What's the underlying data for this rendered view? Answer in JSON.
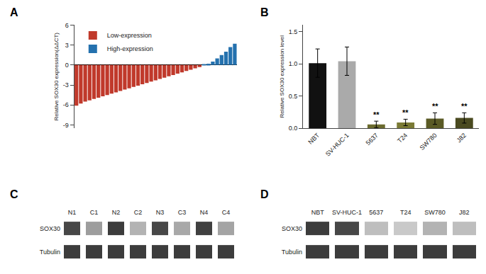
{
  "chart_data": [
    {
      "type": "bar",
      "title": "A",
      "categories": [
        null,
        null,
        null,
        null,
        null,
        null,
        null,
        null,
        null,
        null,
        null,
        null,
        null,
        null,
        null,
        null,
        null,
        null,
        null,
        null,
        null,
        null,
        null,
        null,
        null,
        null,
        null,
        null,
        null,
        null,
        null,
        null,
        null,
        null,
        null,
        null,
        null
      ],
      "series": [
        {
          "name": "Low-expression",
          "color": "#C0392B",
          "values": [
            -6.1,
            -5.8,
            -5.5,
            -5.3,
            -5.1,
            -4.9,
            -4.7,
            -4.5,
            -4.3,
            -4.1,
            -3.9,
            -3.7,
            -3.5,
            -3.3,
            -3.1,
            -2.9,
            -2.7,
            -2.5,
            -2.3,
            -2.1,
            -1.9,
            -1.7,
            -1.5,
            -1.3,
            -1.1,
            -0.9,
            -0.7,
            -0.5,
            -0.3,
            null,
            null,
            null,
            null,
            null,
            null,
            null,
            null
          ]
        },
        {
          "name": "High-expression",
          "color": "#2471AE",
          "values": [
            null,
            null,
            null,
            null,
            null,
            null,
            null,
            null,
            null,
            null,
            null,
            null,
            null,
            null,
            null,
            null,
            null,
            null,
            null,
            null,
            null,
            null,
            null,
            null,
            null,
            null,
            null,
            null,
            null,
            0.05,
            0.2,
            0.5,
            1.0,
            1.5,
            2.0,
            2.7,
            3.2
          ]
        }
      ],
      "ylabel": "Relative SOX30 expression(ΔΔCT)",
      "ylim": [
        -9.5,
        6
      ],
      "yticks": [
        -9,
        -6,
        -3,
        0,
        3,
        6
      ],
      "grid": false,
      "legend": "upper left",
      "tick_labels": "y"
    },
    {
      "type": "bar",
      "title": "B",
      "categories": [
        "NBT",
        "SV-HUC-1",
        "5637",
        "T24",
        "SW780",
        "J82"
      ],
      "values": [
        1.01,
        1.04,
        0.06,
        0.09,
        0.15,
        0.16
      ],
      "errors": [
        0.22,
        0.22,
        0.05,
        0.05,
        0.09,
        0.08
      ],
      "colors": [
        "#111111",
        "#aaaaaa",
        "#6b6b2e",
        "#7a7a35",
        "#5a5a25",
        "#4a4a20"
      ],
      "annotations": [
        null,
        null,
        "**",
        "**",
        "**",
        "**"
      ],
      "ylabel": "Relative SOX30 expression level",
      "ylim": [
        0,
        1.6
      ],
      "yticks": [
        {
          "value": 0,
          "label": "0.0"
        },
        0.5,
        {
          "value": 1,
          "label": "1.0"
        },
        1.5
      ],
      "grid": false
    },
    {
      "type": "heatmap",
      "title": "C",
      "categories": [
        "N1",
        "C1",
        "N2",
        "C2",
        "N3",
        "C3",
        "N4",
        "C4"
      ],
      "rows": [
        "SOX30",
        "Tubulin"
      ],
      "cells": [
        [
          0.85,
          0.45,
          0.9,
          0.35,
          0.85,
          0.4,
          0.88,
          0.42
        ],
        [
          0.9,
          0.9,
          0.9,
          0.9,
          0.9,
          0.9,
          0.9,
          0.9
        ]
      ],
      "grid": false
    },
    {
      "type": "heatmap",
      "title": "D",
      "categories": [
        "NBT",
        "SV-HUC-1",
        "5637",
        "T24",
        "SW780",
        "J82"
      ],
      "rows": [
        "SOX30",
        "Tubulin"
      ],
      "cells": [
        [
          0.9,
          0.85,
          0.3,
          0.25,
          0.35,
          0.3
        ],
        [
          0.9,
          0.9,
          0.9,
          0.9,
          0.9,
          0.9
        ]
      ],
      "grid": false
    }
  ]
}
